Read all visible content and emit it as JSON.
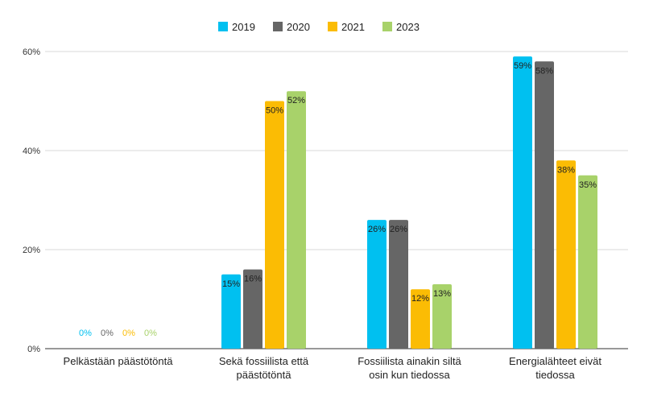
{
  "chart_data": {
    "type": "bar",
    "categories": [
      [
        "Pelkästään päästötöntä"
      ],
      [
        "Sekä fossiilista että",
        "päästötöntä"
      ],
      [
        "Fossiilista ainakin siltä",
        "osin kun tiedossa"
      ],
      [
        "Energialähteet eivät",
        "tiedossa"
      ]
    ],
    "series": [
      {
        "name": "2019",
        "color": "#00c0f0",
        "values": [
          0,
          15,
          26,
          59
        ],
        "labels": [
          "0%",
          "15%",
          "26%",
          "59%"
        ]
      },
      {
        "name": "2020",
        "color": "#666666",
        "values": [
          0,
          16,
          26,
          58
        ],
        "labels": [
          "0%",
          "16%",
          "26%",
          "58%"
        ]
      },
      {
        "name": "2021",
        "color": "#fbbc04",
        "values": [
          0,
          50,
          12,
          38
        ],
        "labels": [
          "0%",
          "50%",
          "12%",
          "38%"
        ]
      },
      {
        "name": "2023",
        "color": "#a8d26a",
        "values": [
          0,
          52,
          13,
          35
        ],
        "labels": [
          "0%",
          "52%",
          "13%",
          "35%"
        ]
      }
    ],
    "y_ticks": [
      {
        "value": 0,
        "label": "0%"
      },
      {
        "value": 20,
        "label": "20%"
      },
      {
        "value": 40,
        "label": "40%"
      },
      {
        "value": 60,
        "label": "60%"
      }
    ],
    "ylim": [
      0,
      60
    ],
    "grid": true,
    "legend_position": "top-center",
    "title": "",
    "xlabel": "",
    "ylabel": ""
  }
}
